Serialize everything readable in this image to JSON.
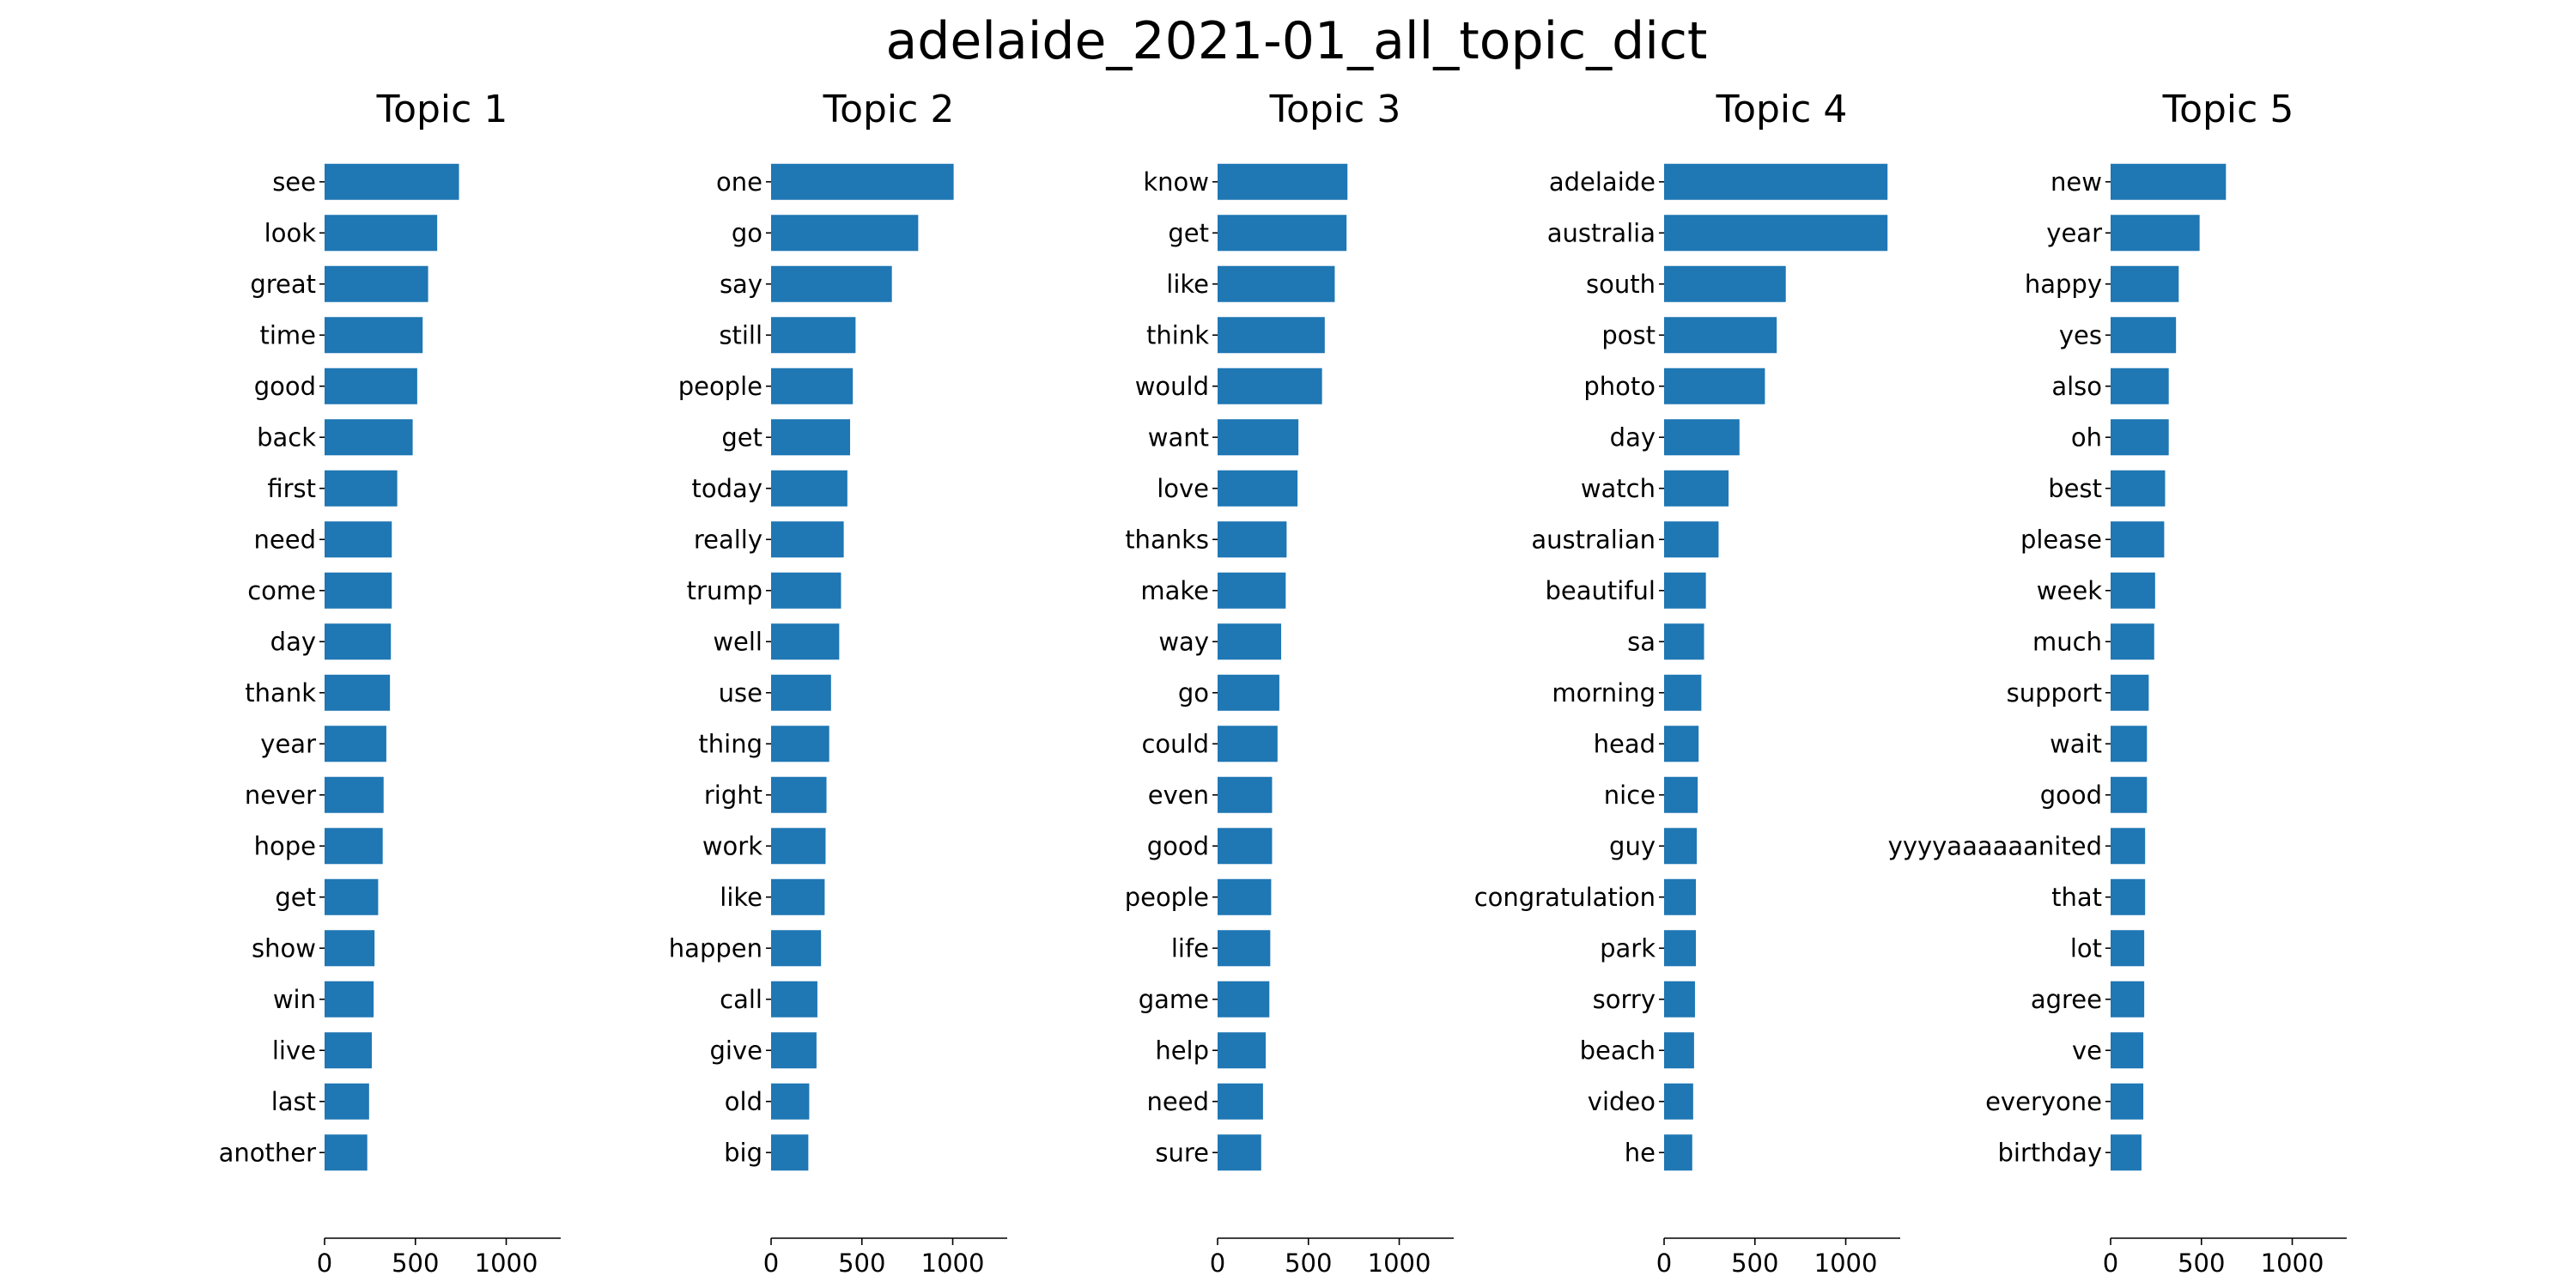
{
  "chart_data": {
    "type": "bar",
    "title": "adelaide_2021-01_all_topic_dict",
    "orientation": "horizontal",
    "bar_color": "#1f77b4",
    "xlim": [
      0,
      1300
    ],
    "xticks": [
      0,
      500,
      1000
    ],
    "grid": false,
    "legend": "none",
    "panels": [
      {
        "title": "Topic 1",
        "categories": [
          "see",
          "look",
          "great",
          "time",
          "good",
          "back",
          "first",
          "need",
          "come",
          "day",
          "thank",
          "year",
          "never",
          "hope",
          "get",
          "show",
          "win",
          "live",
          "last",
          "another"
        ],
        "values": [
          740,
          620,
          570,
          540,
          510,
          485,
          400,
          370,
          370,
          365,
          360,
          340,
          325,
          320,
          295,
          275,
          270,
          260,
          245,
          235
        ]
      },
      {
        "title": "Topic 2",
        "categories": [
          "one",
          "go",
          "say",
          "still",
          "people",
          "get",
          "today",
          "really",
          "trump",
          "well",
          "use",
          "thing",
          "right",
          "work",
          "like",
          "happen",
          "call",
          "give",
          "old",
          "big"
        ],
        "values": [
          1005,
          810,
          665,
          465,
          450,
          435,
          420,
          400,
          385,
          375,
          330,
          320,
          305,
          300,
          295,
          275,
          255,
          250,
          210,
          205
        ]
      },
      {
        "title": "Topic 3",
        "categories": [
          "know",
          "get",
          "like",
          "think",
          "would",
          "want",
          "love",
          "thanks",
          "make",
          "way",
          "go",
          "could",
          "even",
          "good",
          "people",
          "life",
          "game",
          "help",
          "need",
          "sure"
        ],
        "values": [
          715,
          710,
          645,
          590,
          575,
          445,
          440,
          380,
          375,
          350,
          340,
          330,
          300,
          300,
          295,
          290,
          285,
          265,
          250,
          240
        ]
      },
      {
        "title": "Topic 4",
        "categories": [
          "adelaide",
          "australia",
          "south",
          "post",
          "photo",
          "day",
          "watch",
          "australian",
          "beautiful",
          "sa",
          "morning",
          "head",
          "nice",
          "guy",
          "congratulation",
          "park",
          "sorry",
          "beach",
          "video",
          "he"
        ],
        "values": [
          1230,
          1230,
          670,
          620,
          555,
          415,
          355,
          300,
          230,
          220,
          205,
          190,
          185,
          180,
          175,
          175,
          170,
          165,
          160,
          155
        ]
      },
      {
        "title": "Topic 5",
        "categories": [
          "new",
          "year",
          "happy",
          "yes",
          "also",
          "oh",
          "best",
          "please",
          "week",
          "much",
          "support",
          "wait",
          "good",
          "yyyyaaaaaanited",
          "that",
          "lot",
          "agree",
          "ve",
          "everyone",
          "birthday"
        ],
        "values": [
          635,
          490,
          375,
          360,
          320,
          320,
          300,
          295,
          245,
          240,
          210,
          200,
          200,
          190,
          190,
          185,
          185,
          180,
          180,
          170
        ]
      }
    ]
  }
}
